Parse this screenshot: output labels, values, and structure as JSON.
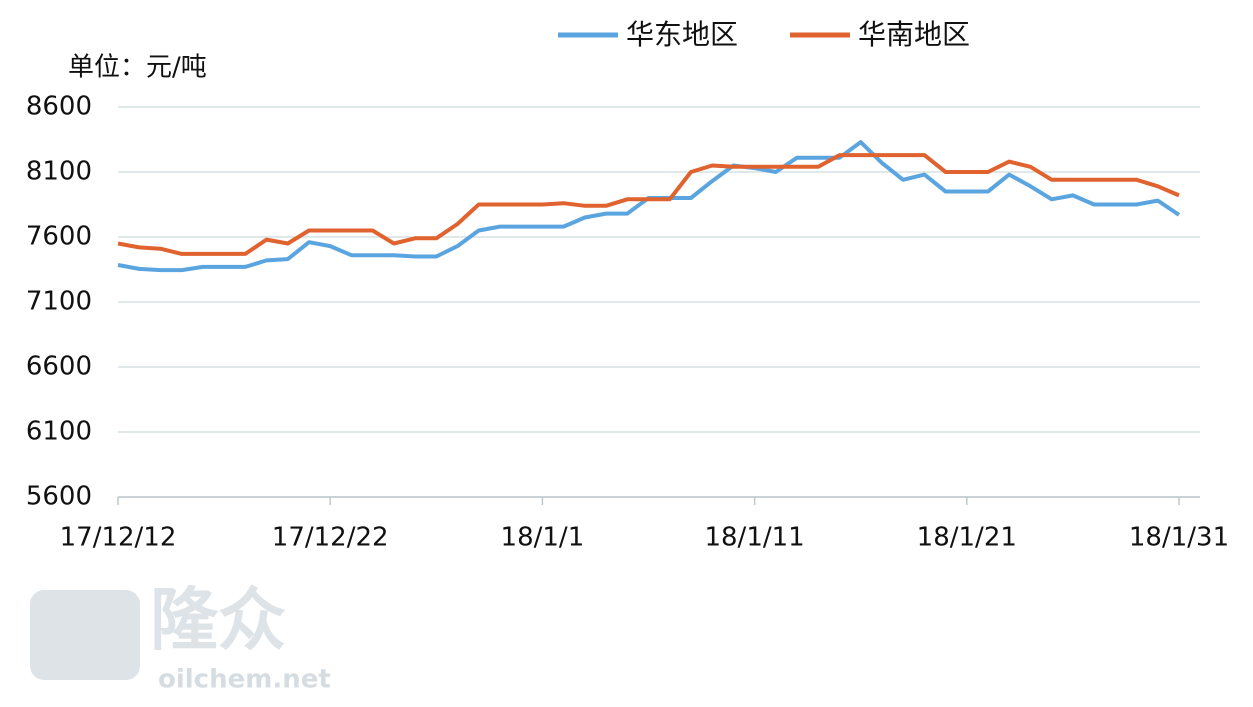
{
  "chart_data": {
    "type": "line",
    "unit_label": "单位：元/吨",
    "categories": [
      "17/12/12",
      null,
      null,
      null,
      null,
      null,
      null,
      null,
      null,
      null,
      "17/12/22",
      null,
      null,
      null,
      null,
      null,
      null,
      null,
      null,
      null,
      "18/1/1",
      null,
      null,
      null,
      null,
      null,
      null,
      null,
      null,
      null,
      "18/1/11",
      null,
      null,
      null,
      null,
      null,
      null,
      null,
      null,
      null,
      "18/1/21",
      null,
      null,
      null,
      null,
      null,
      null,
      null,
      null,
      null,
      "18/1/31"
    ],
    "series": [
      {
        "name": "华东地区",
        "color": "#5aa5e0",
        "values": [
          7385,
          7355,
          7345,
          7345,
          7370,
          7370,
          7370,
          7420,
          7430,
          7560,
          7530,
          7460,
          7460,
          7460,
          7450,
          7450,
          7530,
          7650,
          7680,
          7680,
          7680,
          7680,
          7750,
          7780,
          7780,
          7900,
          7900,
          7900,
          8030,
          8150,
          8130,
          8100,
          8210,
          8210,
          8210,
          8330,
          8170,
          8040,
          8080,
          7950,
          7950,
          7950,
          8080,
          7990,
          7890,
          7920,
          7850,
          7850,
          7850,
          7880,
          7770
        ]
      },
      {
        "name": "华南地区",
        "color": "#e0622f",
        "values": [
          7550,
          7520,
          7510,
          7470,
          7470,
          7470,
          7470,
          7580,
          7550,
          7650,
          7650,
          7650,
          7650,
          7550,
          7590,
          7590,
          7700,
          7850,
          7850,
          7850,
          7850,
          7860,
          7840,
          7840,
          7890,
          7890,
          7890,
          8100,
          8150,
          8140,
          8140,
          8140,
          8140,
          8140,
          8230,
          8230,
          8230,
          8230,
          8230,
          8100,
          8100,
          8100,
          8180,
          8140,
          8040,
          8040,
          8040,
          8040,
          8040,
          7990,
          7920
        ]
      }
    ],
    "ylim": [
      5600,
      8600
    ],
    "yticks": [
      5600,
      6100,
      6600,
      7100,
      7600,
      8100,
      8600
    ],
    "grid": true,
    "legend": "top",
    "watermark": {
      "brand": "隆众",
      "site": "oilchem.net"
    }
  }
}
